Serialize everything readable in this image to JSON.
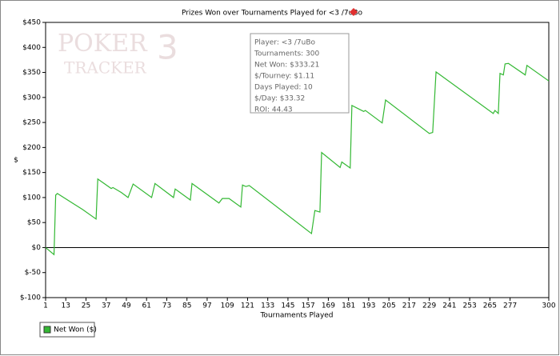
{
  "chart_data": {
    "type": "line",
    "title": "Prizes Won over Tournaments Played for <3 /7uBo",
    "x_label": "Tournaments Played",
    "y_label": "$",
    "watermark": [
      "POKER",
      "TRACKER",
      "3"
    ],
    "info": [
      "Player: <3 /7uBo",
      "Tournaments: 300",
      "Net Won: $333.21",
      "$/Tourney: $1.11",
      "Days Played: 10",
      "$/Day: $33.32",
      "ROI: 44.43"
    ],
    "x": [
      1,
      6,
      7,
      8,
      23,
      31,
      32,
      40,
      41,
      46,
      50,
      53,
      64,
      66,
      77,
      78,
      87,
      88,
      104,
      106,
      110,
      117,
      118,
      120,
      122,
      159,
      161,
      163,
      164,
      165,
      176,
      177,
      182,
      183,
      190,
      191,
      201,
      203,
      229,
      231,
      233,
      267,
      268,
      270,
      271,
      273,
      274,
      276,
      286,
      287,
      300
    ],
    "series": [
      {
        "name": "Net Won ($)",
        "color": "#33b833",
        "values": [
          0,
          -14,
          105,
          108,
          76,
          57,
          137,
          118,
          120,
          110,
          100,
          127,
          100,
          128,
          100,
          117,
          95,
          128,
          89,
          98,
          98,
          81,
          125,
          122,
          124,
          28,
          74,
          72,
          71,
          190,
          160,
          171,
          159,
          284,
          272,
          274,
          249,
          295,
          228,
          230,
          351,
          268,
          274,
          268,
          348,
          345,
          367,
          368,
          345,
          364,
          333
        ]
      }
    ],
    "xlim": [
      1,
      300
    ],
    "xticks": [
      1,
      13,
      25,
      37,
      49,
      61,
      73,
      85,
      97,
      109,
      121,
      133,
      145,
      157,
      169,
      181,
      193,
      205,
      217,
      229,
      241,
      253,
      265,
      277,
      300
    ],
    "ylim": [
      -100,
      450
    ],
    "yticks": [
      {
        "value": 450,
        "label": "$450"
      },
      {
        "value": 400,
        "label": "$400"
      },
      {
        "value": 350,
        "label": "$350"
      },
      {
        "value": 300,
        "label": "$300"
      },
      {
        "value": 250,
        "label": "$250"
      },
      {
        "value": 200,
        "label": "$200"
      },
      {
        "value": 150,
        "label": "$150"
      },
      {
        "value": 100,
        "label": "$100"
      },
      {
        "value": 50,
        "label": "$50"
      },
      {
        "value": 0,
        "label": "$0"
      },
      {
        "value": -50,
        "label": "$-50"
      },
      {
        "value": -100,
        "label": "$-100"
      }
    ],
    "legend": "bottom-left"
  }
}
